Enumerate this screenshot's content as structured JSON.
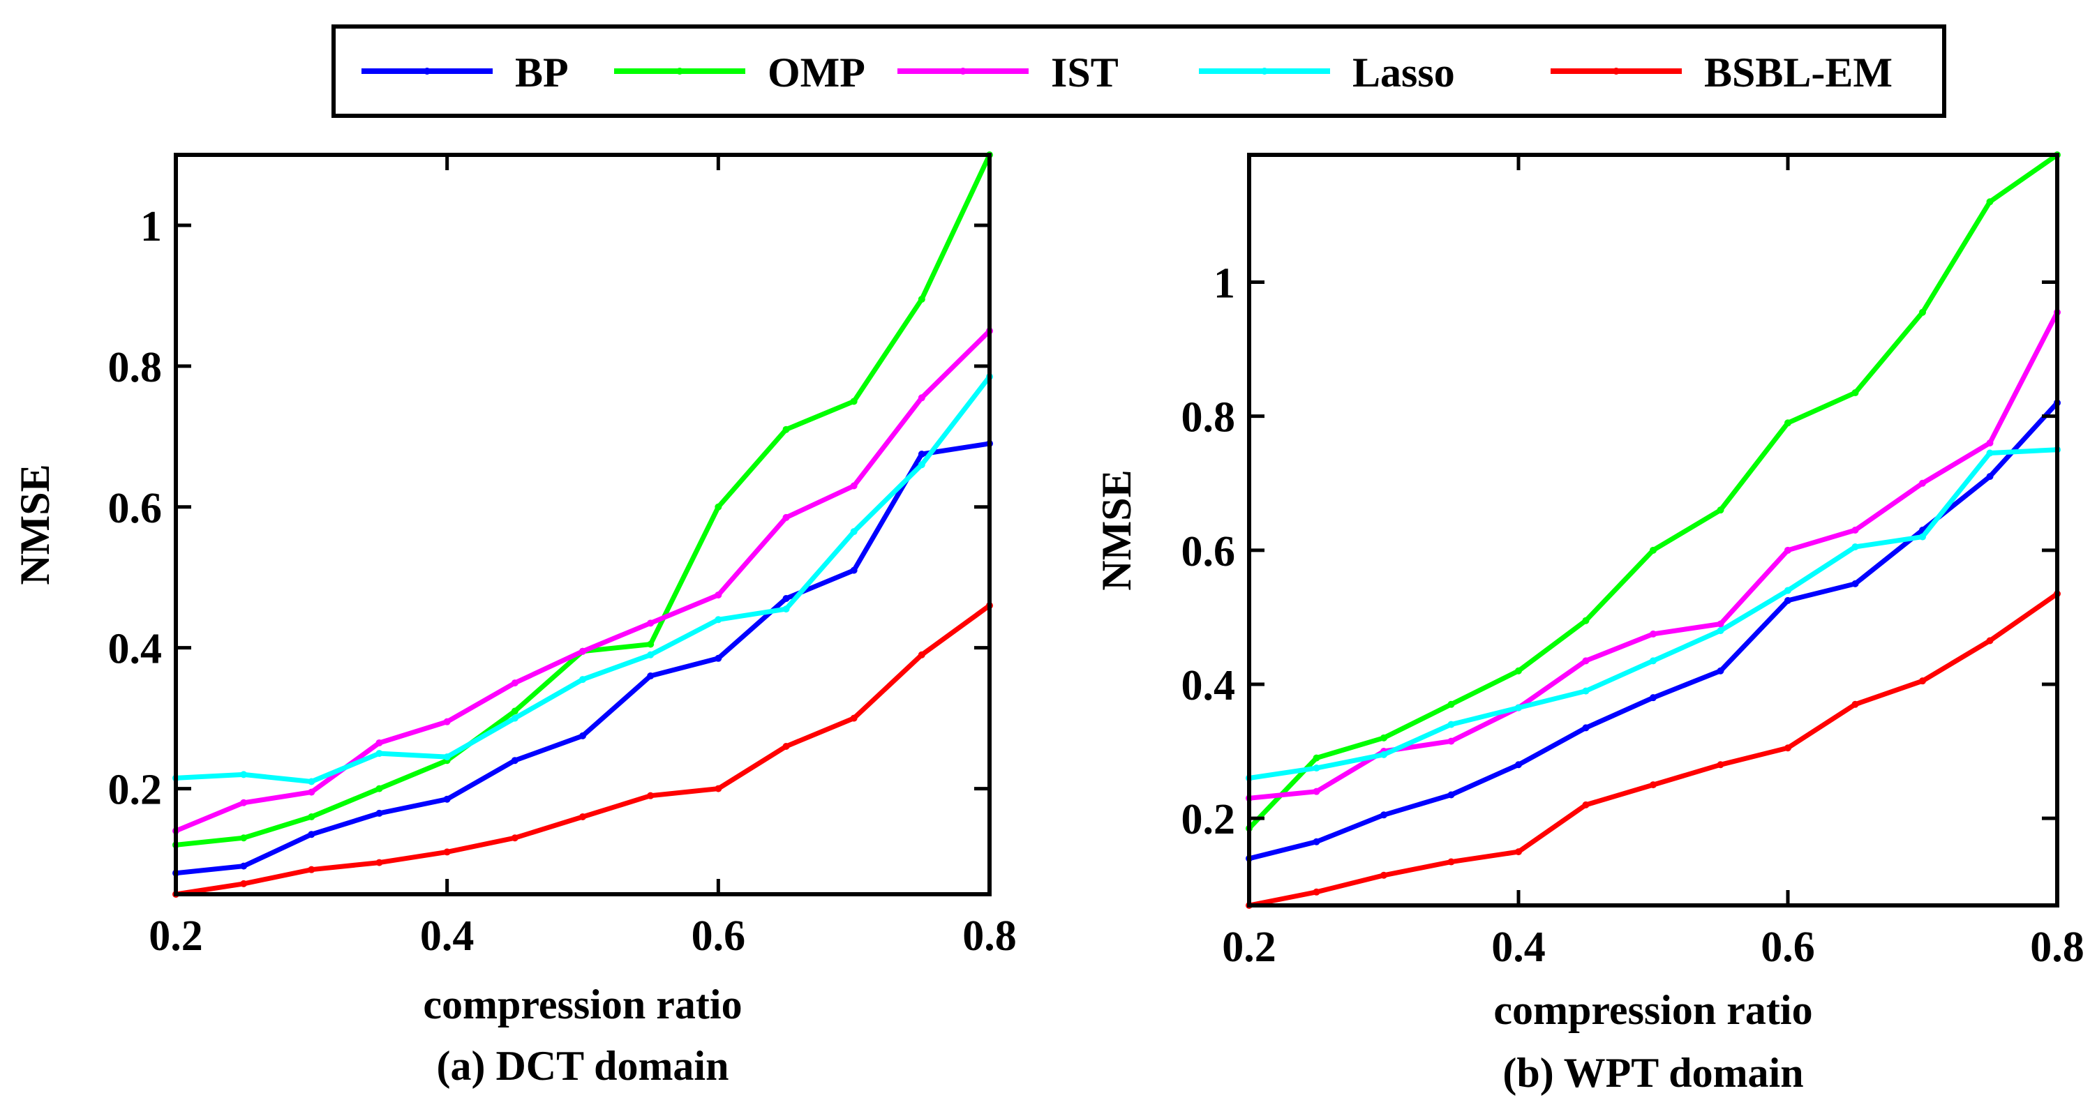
{
  "legend": [
    {
      "name": "BP",
      "color": "#0000ff"
    },
    {
      "name": "OMP",
      "color": "#00ff00"
    },
    {
      "name": "IST",
      "color": "#ff00ff"
    },
    {
      "name": "Lasso",
      "color": "#00ffff"
    },
    {
      "name": "BSBL-EM",
      "color": "#ff0000"
    }
  ],
  "chart_data": [
    {
      "type": "line",
      "caption": "(a) DCT domain",
      "xlabel": "compression ratio",
      "ylabel": "NMSE",
      "xlim": [
        0.2,
        0.8
      ],
      "ylim": [
        0.05,
        1.1
      ],
      "xticks": [
        "0.2",
        "0.4",
        "0.6",
        "0.8"
      ],
      "xtick_values": [
        0.2,
        0.4,
        0.6,
        0.8
      ],
      "yticks": [
        "0.2",
        "0.4",
        "0.6",
        "0.8",
        "1"
      ],
      "ytick_values": [
        0.2,
        0.4,
        0.6,
        0.8,
        1.0
      ],
      "x": [
        0.2,
        0.25,
        0.3,
        0.35,
        0.4,
        0.45,
        0.5,
        0.55,
        0.6,
        0.65,
        0.7,
        0.75,
        0.8
      ],
      "grid": false,
      "legend_position": "top",
      "series": [
        {
          "name": "BP",
          "color": "#0000ff",
          "values": [
            0.08,
            0.09,
            0.135,
            0.165,
            0.185,
            0.24,
            0.275,
            0.36,
            0.385,
            0.47,
            0.51,
            0.675,
            0.69
          ]
        },
        {
          "name": "OMP",
          "color": "#00ff00",
          "values": [
            0.12,
            0.13,
            0.16,
            0.2,
            0.24,
            0.31,
            0.395,
            0.405,
            0.6,
            0.71,
            0.75,
            0.895,
            1.1
          ]
        },
        {
          "name": "IST",
          "color": "#ff00ff",
          "values": [
            0.14,
            0.18,
            0.195,
            0.265,
            0.295,
            0.35,
            0.395,
            0.435,
            0.475,
            0.585,
            0.63,
            0.755,
            0.85
          ]
        },
        {
          "name": "Lasso",
          "color": "#00ffff",
          "values": [
            0.215,
            0.22,
            0.21,
            0.25,
            0.245,
            0.3,
            0.355,
            0.39,
            0.44,
            0.455,
            0.565,
            0.66,
            0.785
          ]
        },
        {
          "name": "BSBL-EM",
          "color": "#ff0000",
          "values": [
            0.05,
            0.065,
            0.085,
            0.095,
            0.11,
            0.13,
            0.16,
            0.19,
            0.2,
            0.26,
            0.3,
            0.39,
            0.46
          ]
        }
      ]
    },
    {
      "type": "line",
      "caption": "(b) WPT domain",
      "xlabel": "compression ratio",
      "ylabel": "NMSE",
      "xlim": [
        0.2,
        0.8
      ],
      "ylim": [
        0.07,
        1.19
      ],
      "xticks": [
        "0.2",
        "0.4",
        "0.6",
        "0.8"
      ],
      "xtick_values": [
        0.2,
        0.4,
        0.6,
        0.8
      ],
      "yticks": [
        "0.2",
        "0.4",
        "0.6",
        "0.8",
        "1"
      ],
      "ytick_values": [
        0.2,
        0.4,
        0.6,
        0.8,
        1.0
      ],
      "x": [
        0.2,
        0.25,
        0.3,
        0.35,
        0.4,
        0.45,
        0.5,
        0.55,
        0.6,
        0.65,
        0.7,
        0.75,
        0.8
      ],
      "grid": false,
      "legend_position": "top",
      "series": [
        {
          "name": "BP",
          "color": "#0000ff",
          "values": [
            0.14,
            0.165,
            0.205,
            0.235,
            0.28,
            0.335,
            0.38,
            0.42,
            0.525,
            0.55,
            0.63,
            0.71,
            0.82
          ]
        },
        {
          "name": "OMP",
          "color": "#00ff00",
          "values": [
            0.185,
            0.29,
            0.32,
            0.37,
            0.42,
            0.495,
            0.6,
            0.66,
            0.79,
            0.835,
            0.955,
            1.12,
            1.19
          ]
        },
        {
          "name": "IST",
          "color": "#ff00ff",
          "values": [
            0.23,
            0.24,
            0.3,
            0.315,
            0.365,
            0.435,
            0.475,
            0.49,
            0.6,
            0.63,
            0.7,
            0.76,
            0.955
          ]
        },
        {
          "name": "Lasso",
          "color": "#00ffff",
          "values": [
            0.26,
            0.275,
            0.295,
            0.34,
            0.365,
            0.39,
            0.435,
            0.48,
            0.54,
            0.605,
            0.62,
            0.745,
            0.75
          ]
        },
        {
          "name": "BSBL-EM",
          "color": "#ff0000",
          "values": [
            0.07,
            0.09,
            0.115,
            0.135,
            0.15,
            0.22,
            0.25,
            0.28,
            0.305,
            0.37,
            0.405,
            0.465,
            0.535
          ]
        }
      ]
    }
  ]
}
